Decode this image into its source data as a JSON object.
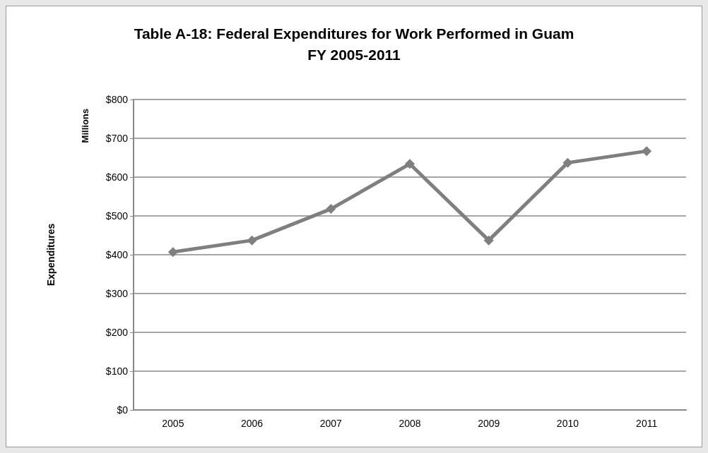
{
  "chart_data": {
    "type": "line",
    "title": "Table A-18: Federal Expenditures for Work Performed in Guam\nFY 2005-2011",
    "ylabel": "Expenditures",
    "annotations": [
      "Millions"
    ],
    "categories": [
      "2005",
      "2006",
      "2007",
      "2008",
      "2009",
      "2010",
      "2011"
    ],
    "series": [
      {
        "color": "#7f7f7f",
        "values": [
          407,
          437,
          518,
          634,
          437,
          637,
          667
        ]
      }
    ],
    "ylim": [
      0,
      800
    ],
    "yticks": [
      {
        "value": 0,
        "label": "$0"
      },
      {
        "value": 100,
        "label": "$100"
      },
      {
        "value": 200,
        "label": "$200"
      },
      {
        "value": 300,
        "label": "$300"
      },
      {
        "value": 400,
        "label": "$400"
      },
      {
        "value": 500,
        "label": "$500"
      },
      {
        "value": 600,
        "label": "$600"
      },
      {
        "value": 700,
        "label": "$700"
      },
      {
        "value": 800,
        "label": "$800"
      }
    ],
    "grid": "y",
    "marker": "diamond",
    "line_style": "solid"
  }
}
